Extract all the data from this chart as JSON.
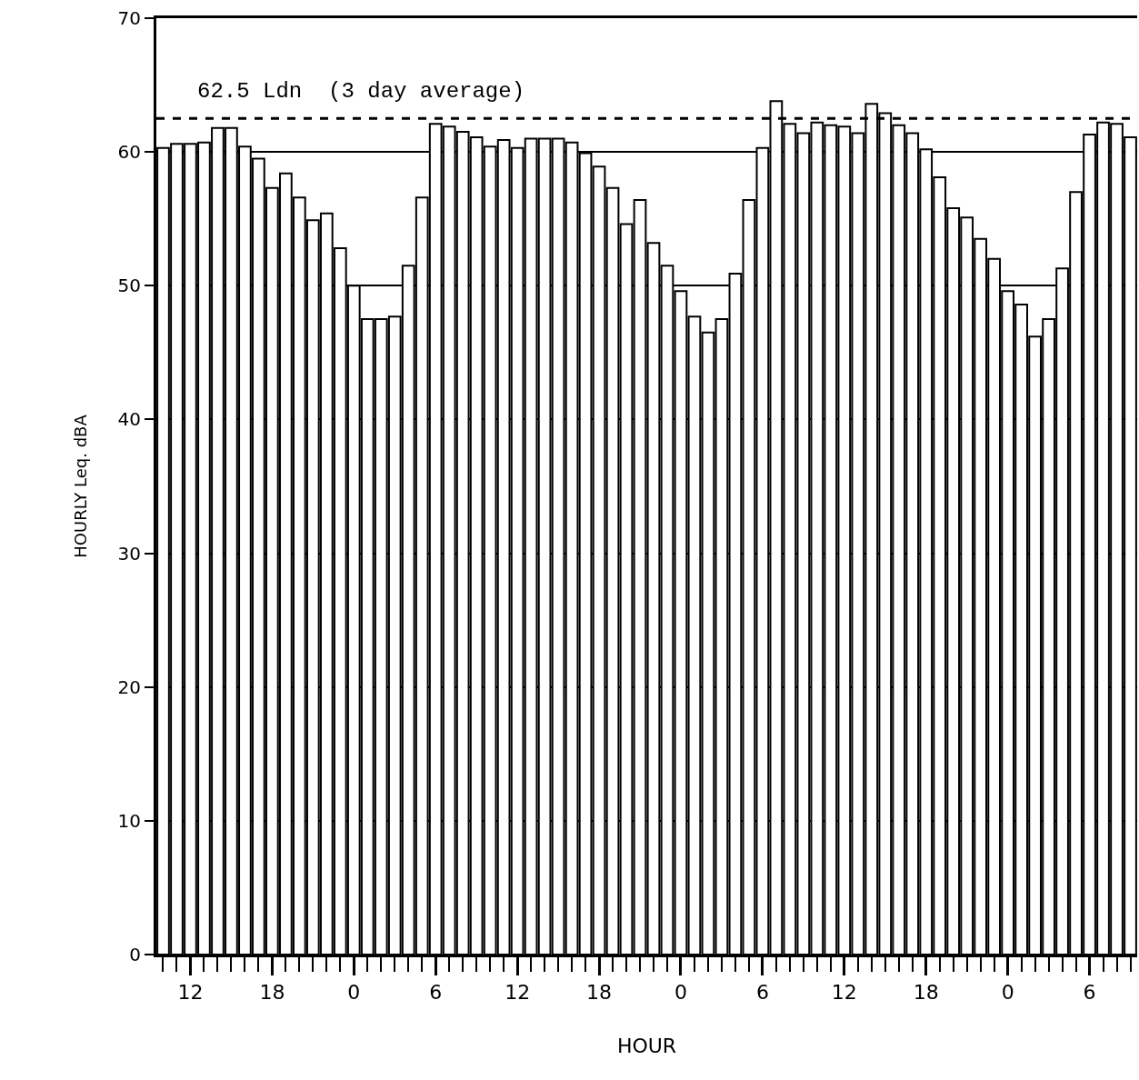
{
  "chart_data": {
    "type": "bar",
    "xlabel": "HOUR",
    "ylabel": "HOURLY Leq. dBA",
    "categories": [
      null,
      null,
      "12",
      null,
      null,
      null,
      null,
      null,
      "18",
      null,
      null,
      null,
      null,
      null,
      "0",
      null,
      null,
      null,
      null,
      null,
      "6",
      null,
      null,
      null,
      null,
      null,
      "12",
      null,
      null,
      null,
      null,
      null,
      "18",
      null,
      null,
      null,
      null,
      null,
      "0",
      null,
      null,
      null,
      null,
      null,
      "6",
      null,
      null,
      null,
      null,
      null,
      "12",
      null,
      null,
      null,
      null,
      null,
      "18",
      null,
      null,
      null,
      null,
      null,
      "0",
      null,
      null,
      null,
      null,
      null,
      "6",
      null,
      null,
      null
    ],
    "values": [
      60.3,
      60.6,
      60.6,
      60.7,
      61.8,
      61.8,
      60.4,
      59.5,
      57.3,
      58.4,
      56.6,
      54.9,
      55.4,
      52.8,
      50.0,
      47.5,
      47.5,
      47.7,
      51.5,
      56.6,
      62.1,
      61.9,
      61.5,
      61.1,
      60.4,
      60.9,
      60.3,
      61.0,
      61.0,
      61.0,
      60.7,
      59.9,
      58.9,
      57.3,
      54.6,
      56.4,
      53.2,
      51.5,
      49.6,
      47.7,
      46.5,
      47.5,
      50.9,
      56.4,
      60.3,
      63.8,
      62.1,
      61.4,
      62.2,
      62.0,
      61.9,
      61.4,
      63.6,
      62.9,
      62.0,
      61.4,
      60.2,
      58.1,
      55.8,
      55.1,
      53.5,
      52.0,
      49.6,
      48.6,
      46.2,
      47.5,
      51.3,
      57.0,
      61.3,
      62.2,
      62.1,
      61.1
    ],
    "color": "#ffffff",
    "ylim": [
      0,
      70
    ],
    "yticks": [
      0,
      10,
      20,
      30,
      40,
      50,
      60,
      70
    ],
    "grid": "y",
    "ref_lines": [
      {
        "axis": "y",
        "value": 62.5,
        "label": "62.5 Ldn  (3 day average)",
        "line_style": "dashed",
        "color": "#000000"
      }
    ]
  }
}
